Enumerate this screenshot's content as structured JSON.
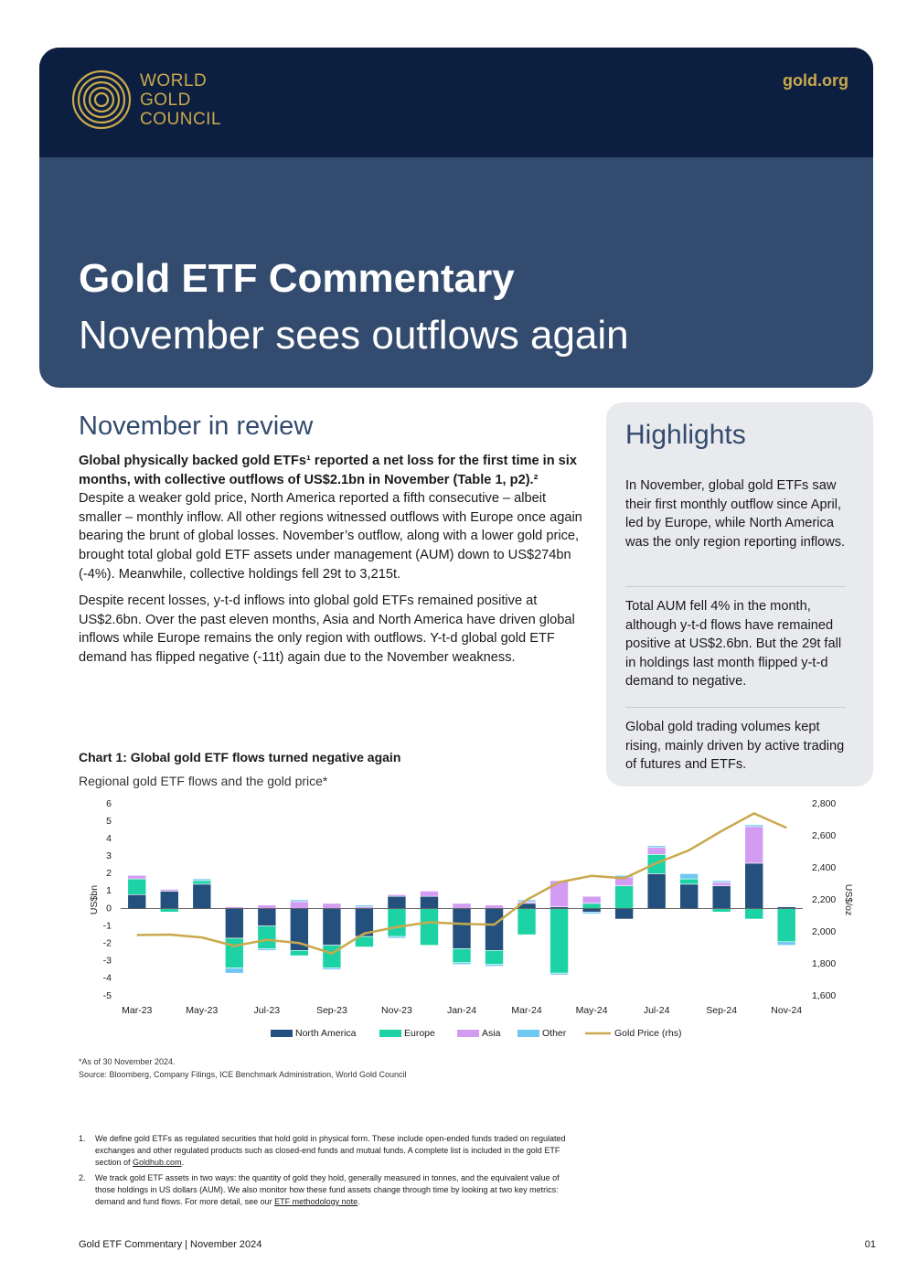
{
  "header": {
    "logo_lines": [
      "WORLD",
      "GOLD",
      "COUNCIL"
    ],
    "site": "gold.org",
    "title": "Gold ETF Commentary",
    "subtitle": "November sees outflows again"
  },
  "review": {
    "heading": "November in review",
    "paragraph_1": {
      "bold": "Global physically backed gold ETFs¹ reported a net loss for the first time in six months, with collective outflows of US$2.1bn in November (Table 1, p2).²",
      "text": "Despite a weaker gold price, North America reported a fifth consecutive – albeit smaller – monthly inflow. All other regions witnessed outflows with Europe once again bearing the brunt of global losses. November’s outflow, along with a lower gold price, brought total global gold ETF assets under management (AUM) down to US$274bn (-4%). Meanwhile, collective holdings fell 29t to 3,215t."
    },
    "paragraph_2": "Despite recent losses, y-t-d inflows into global gold ETFs remained positive at US$2.6bn. Over the past eleven months, Asia and North America have driven global inflows while Europe remains the only region with outflows. Y-t-d global gold ETF demand has flipped negative (-11t) again due to the November weakness."
  },
  "highlights": {
    "heading": "Highlights",
    "items": [
      "In November, global gold ETFs saw their first monthly outflow since April, led by Europe, while North America was the only region reporting inflows.",
      "Total AUM fell 4% in the month, although y-t-d flows have remained positive at US$2.6bn. But the 29t fall in holdings last month flipped y-t-d demand to negative.",
      "Global gold trading volumes kept rising, mainly driven by active trading of futures and ETFs."
    ]
  },
  "chart_data": {
    "type": "bar",
    "title": "Chart 1: Global gold ETF flows turned negative again",
    "subtitle": "Regional gold ETF flows and the gold price*",
    "y_label": "US$bn",
    "y2_label": "US$/oz",
    "categories": [
      "Mar-23",
      null,
      "May-23",
      null,
      "Jul-23",
      null,
      "Sep-23",
      null,
      "Nov-23",
      null,
      "Jan-24",
      null,
      "Mar-24",
      null,
      "May-24",
      null,
      "Jul-24",
      null,
      "Sep-24",
      null,
      "Nov-24"
    ],
    "series": [
      {
        "name": "North America",
        "color": "#24507e",
        "values": [
          0.8,
          1.0,
          1.4,
          -1.7,
          -1.0,
          -2.4,
          -2.1,
          -1.6,
          0.7,
          0.7,
          -2.3,
          -2.4,
          0.3,
          0.1,
          -0.2,
          -0.6,
          2.0,
          1.4,
          1.3,
          2.6,
          0.1
        ]
      },
      {
        "name": "Europe",
        "color": "#1dd3a5",
        "values": [
          0.9,
          -0.2,
          0.2,
          -1.7,
          -1.3,
          -0.3,
          -1.3,
          -0.6,
          -1.6,
          -2.1,
          -0.8,
          -0.8,
          -1.5,
          -3.7,
          0.3,
          1.3,
          1.1,
          0.3,
          -0.2,
          -0.6,
          -1.9
        ]
      },
      {
        "name": "Asia",
        "color": "#d39cf3",
        "values": [
          0.2,
          0.1,
          0.0,
          0.1,
          0.2,
          0.4,
          0.3,
          0.1,
          0.1,
          0.3,
          0.3,
          0.2,
          0.1,
          1.5,
          0.4,
          0.5,
          0.4,
          0.0,
          0.2,
          2.1,
          0.0
        ]
      },
      {
        "name": "Other",
        "color": "#6ec8f2",
        "values": [
          0.0,
          0.0,
          0.1,
          -0.3,
          -0.1,
          0.1,
          -0.1,
          0.1,
          -0.1,
          0.0,
          -0.1,
          -0.1,
          0.1,
          -0.1,
          -0.1,
          0.1,
          0.1,
          0.3,
          0.1,
          0.1,
          -0.2
        ]
      },
      {
        "name": "Gold Price (rhs)",
        "color": "#c9a94d",
        "axis": "y2",
        "values": [
          1980,
          1983,
          1965,
          1912,
          1950,
          1930,
          1865,
          1990,
          2030,
          2060,
          2050,
          2045,
          2200,
          2310,
          2350,
          2335,
          2430,
          2510,
          2630,
          2740,
          2650
        ]
      }
    ],
    "ylim": [
      -5,
      6
    ],
    "yticks": [
      -5,
      -4,
      -3,
      -2,
      -1,
      0,
      1,
      2,
      3,
      4,
      5,
      6
    ],
    "y2lim": [
      1600,
      2800
    ],
    "y2ticks": [
      {
        "value": 1600,
        "label": "1,600"
      },
      {
        "value": 1800,
        "label": "1,800"
      },
      {
        "value": 2000,
        "label": "2,000"
      },
      {
        "value": 2200,
        "label": "2,200"
      },
      {
        "value": 2400,
        "label": "2,400"
      },
      {
        "value": 2600,
        "label": "2,600"
      },
      {
        "value": 2800,
        "label": "2,800"
      }
    ],
    "stacked": true,
    "grid": false,
    "legend": "bottom",
    "note": "*As of 30 November 2024.",
    "source": "Source: Bloomberg, Company Filings, ICE Benchmark Administration, World Gold Council"
  },
  "footnotes": [
    {
      "number": "1.",
      "text": "We define gold ETFs as regulated securities that hold gold in physical form. These include open-ended funds traded on regulated exchanges and other regulated products such as closed-end funds and mutual funds. A complete list is included in the gold ETF section of ",
      "link": "Goldhub.com",
      "end": "."
    },
    {
      "number": "2.",
      "text": "We track gold ETF assets in two ways: the quantity of gold they hold, generally measured in tonnes, and the equivalent value of those holdings in US dollars (AUM). We also monitor how these fund assets change through time by looking at two key metrics: demand and fund flows. For more detail, see our ",
      "link": "ETF methodology note",
      "end": "."
    }
  ],
  "footer": {
    "left": "Gold ETF Commentary | November 2024",
    "page": "01"
  }
}
